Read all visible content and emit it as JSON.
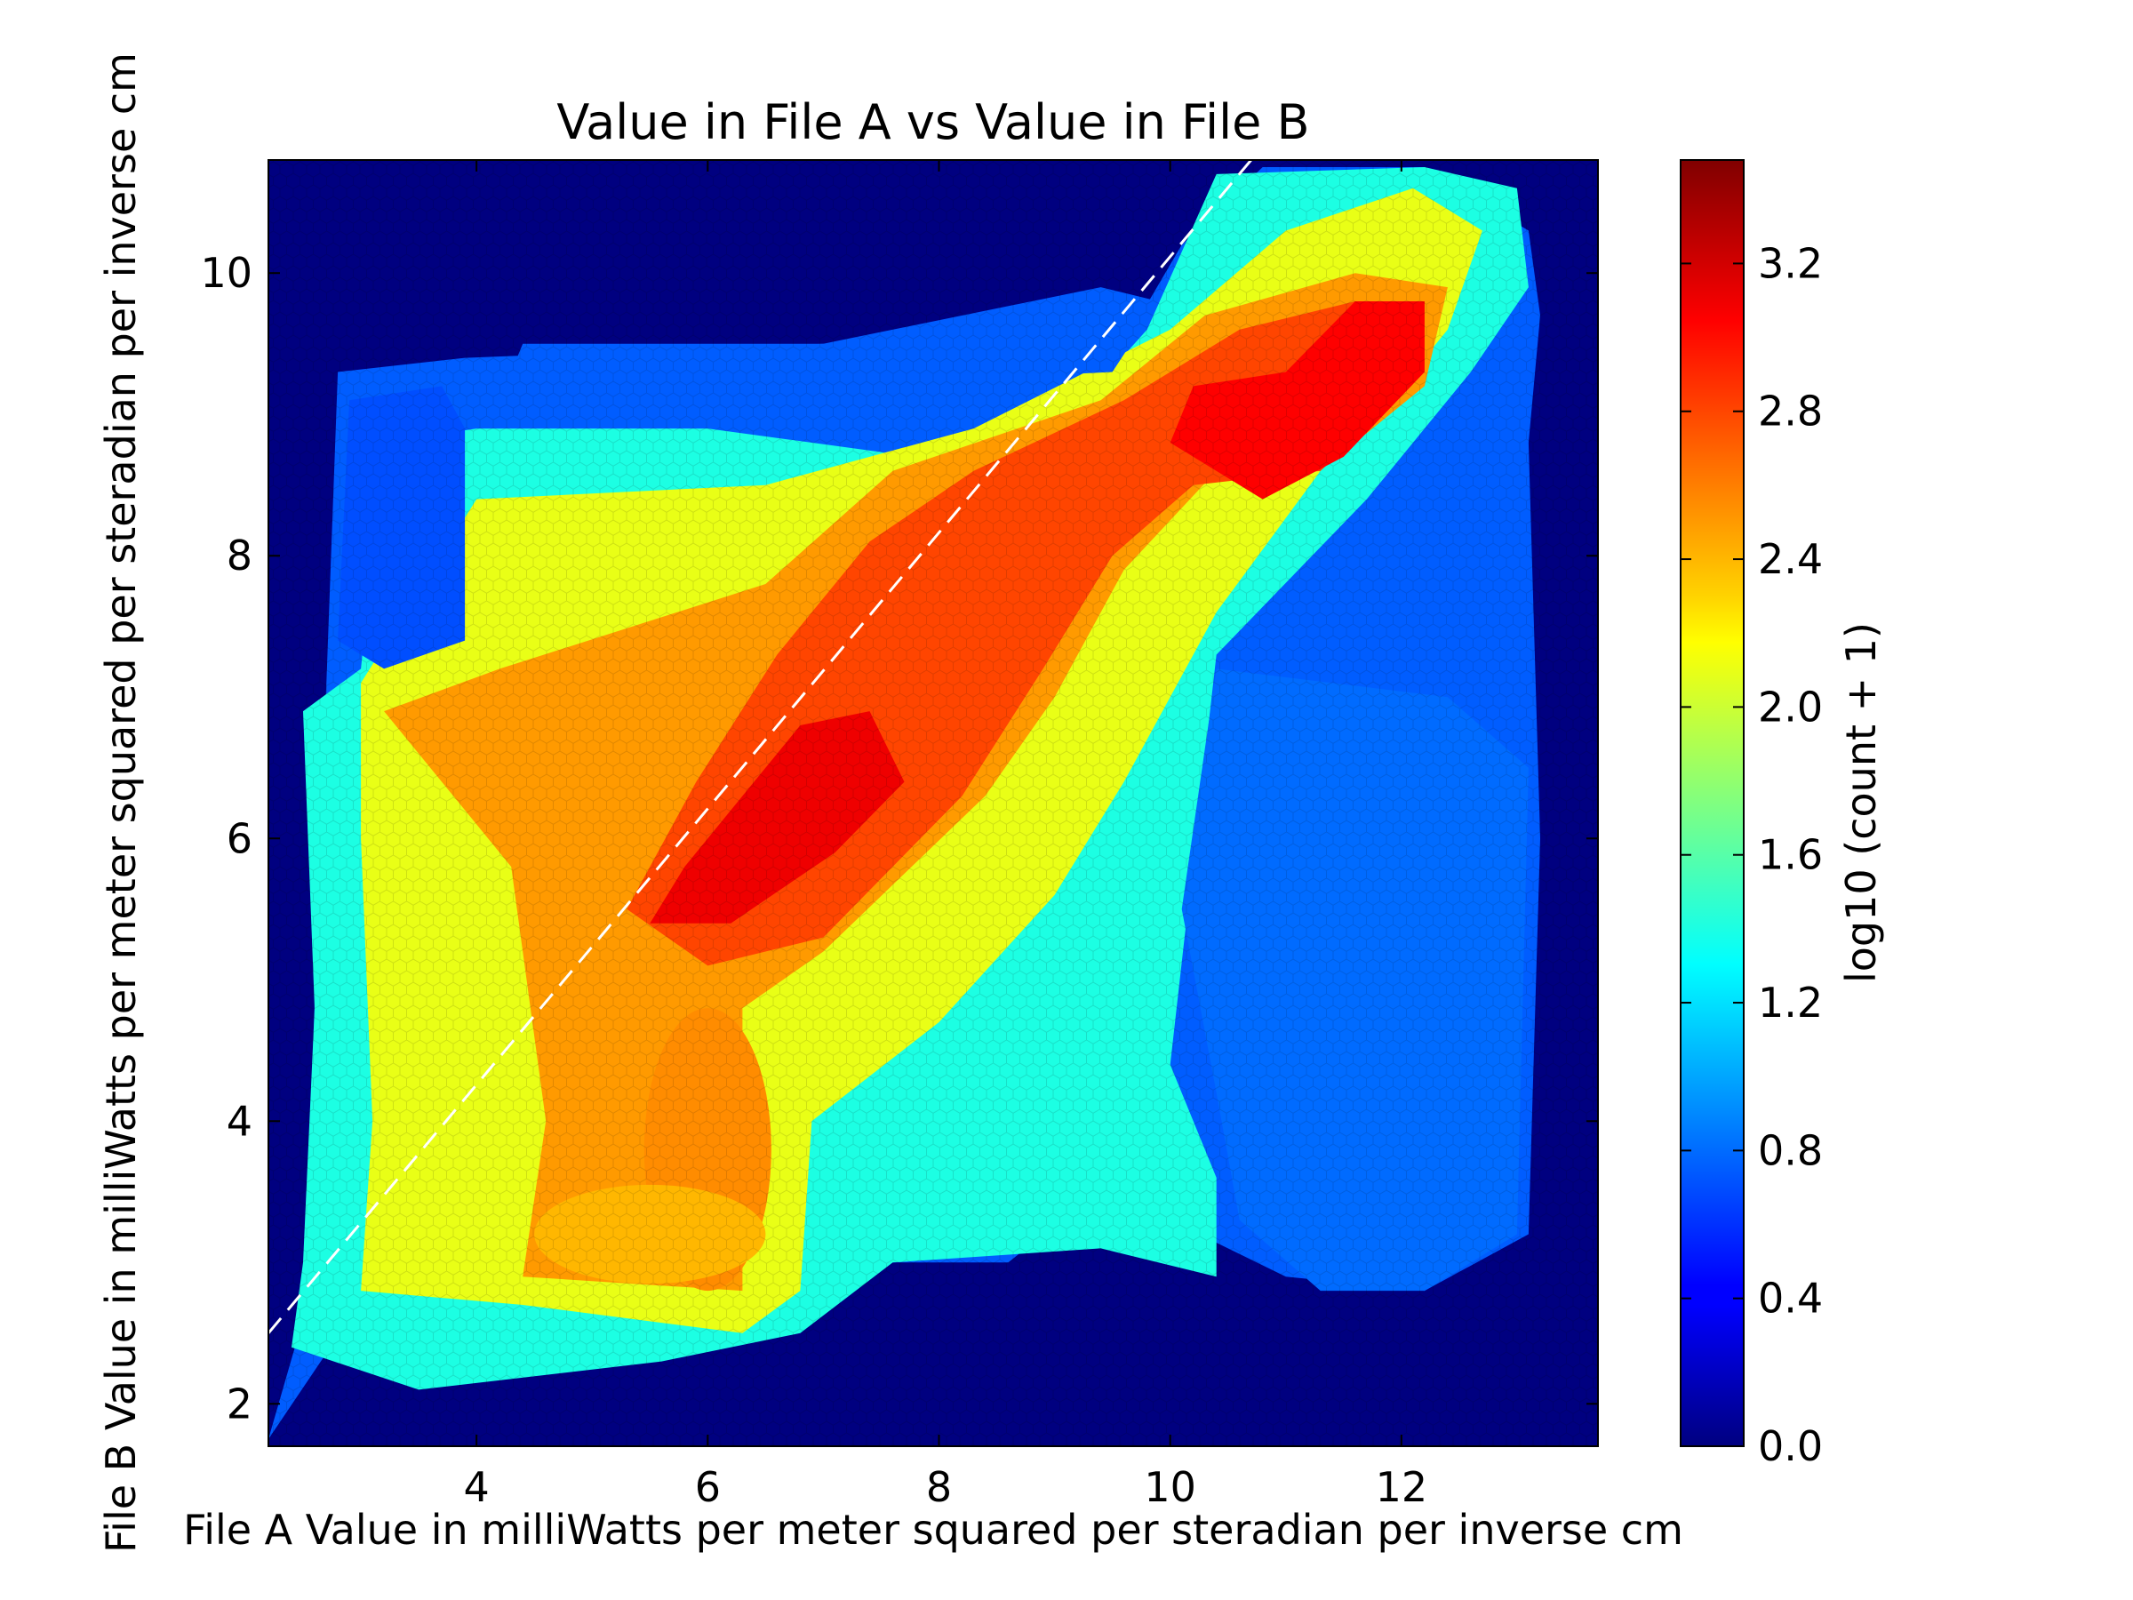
{
  "chart_data": {
    "type": "heatmap",
    "subtype": "hexbin",
    "title": "Value in File A vs Value in File B",
    "xlabel": "File A Value in milliWatts per meter squared per steradian per inverse cm",
    "ylabel": "File B Value in milliWatts per meter squared per steradian per inverse cm",
    "xlim": [
      2.2,
      13.7
    ],
    "ylim": [
      1.7,
      10.8
    ],
    "xticks": [
      4,
      6,
      8,
      10,
      12
    ],
    "yticks": [
      2,
      4,
      6,
      8,
      10
    ],
    "grid": false,
    "colormap": "jet",
    "background_color": "#000080",
    "reference_line": {
      "style": "dashed",
      "color": "#ffffff",
      "points": [
        [
          2.2,
          2.5
        ],
        [
          10.7,
          10.8
        ]
      ]
    },
    "colorbar": {
      "label": "log10 (count + 1)",
      "range": [
        0.0,
        3.48
      ],
      "ticks": [
        "0.0",
        "0.4",
        "0.8",
        "1.2",
        "1.6",
        "2.0",
        "2.4",
        "2.8",
        "3.2"
      ],
      "tick_values": [
        0.0,
        0.4,
        0.8,
        1.2,
        1.6,
        2.0,
        2.4,
        2.8,
        3.2
      ]
    },
    "density_regions": [
      {
        "type": "polygon",
        "level": 0.75,
        "points": [
          [
            2.2,
            1.75
          ],
          [
            2.9,
            2.6
          ],
          [
            6.5,
            2.6
          ],
          [
            7.5,
            3.0
          ],
          [
            8.6,
            3.0
          ],
          [
            9.5,
            3.6
          ],
          [
            10.0,
            3.3
          ],
          [
            11.0,
            2.9
          ],
          [
            12.2,
            2.8
          ],
          [
            13.1,
            3.2
          ],
          [
            13.2,
            6.0
          ],
          [
            13.1,
            8.8
          ],
          [
            13.2,
            9.7
          ],
          [
            13.1,
            10.3
          ],
          [
            12.2,
            10.75
          ],
          [
            10.8,
            10.75
          ],
          [
            10.1,
            10.2
          ],
          [
            9.6,
            9.5
          ],
          [
            7.0,
            9.5
          ],
          [
            3.9,
            9.4
          ],
          [
            2.8,
            9.3
          ],
          [
            2.5,
            2.6
          ]
        ]
      },
      {
        "type": "polygon",
        "level": 1.4,
        "points": [
          [
            2.4,
            2.4
          ],
          [
            3.5,
            2.1
          ],
          [
            5.6,
            2.3
          ],
          [
            6.8,
            2.5
          ],
          [
            7.6,
            3.0
          ],
          [
            9.4,
            3.1
          ],
          [
            10.4,
            2.9
          ],
          [
            10.4,
            3.6
          ],
          [
            10.0,
            4.4
          ],
          [
            10.4,
            7.3
          ],
          [
            11.7,
            8.4
          ],
          [
            12.6,
            9.3
          ],
          [
            13.1,
            9.9
          ],
          [
            13.0,
            10.6
          ],
          [
            12.2,
            10.75
          ],
          [
            10.4,
            10.7
          ],
          [
            9.8,
            9.6
          ],
          [
            8.7,
            8.6
          ],
          [
            6.0,
            8.9
          ],
          [
            4.0,
            8.9
          ],
          [
            3.2,
            8.8
          ],
          [
            3.0,
            7.2
          ],
          [
            2.5,
            6.9
          ],
          [
            2.6,
            4.8
          ],
          [
            2.5,
            3.0
          ]
        ]
      },
      {
        "type": "polygon",
        "level": 2.1,
        "points": [
          [
            3.0,
            2.8
          ],
          [
            4.4,
            2.7
          ],
          [
            6.3,
            2.5
          ],
          [
            6.8,
            2.8
          ],
          [
            6.9,
            4.0
          ],
          [
            8.0,
            4.7
          ],
          [
            9.0,
            5.6
          ],
          [
            9.6,
            6.4
          ],
          [
            10.4,
            7.6
          ],
          [
            11.3,
            8.6
          ],
          [
            11.9,
            9.1
          ],
          [
            12.4,
            9.6
          ],
          [
            12.7,
            10.3
          ],
          [
            12.1,
            10.6
          ],
          [
            11.0,
            10.3
          ],
          [
            10.0,
            9.6
          ],
          [
            8.3,
            8.9
          ],
          [
            6.5,
            8.5
          ],
          [
            4.0,
            8.4
          ],
          [
            3.0,
            7.1
          ],
          [
            3.0,
            6.0
          ],
          [
            3.1,
            4.0
          ]
        ]
      },
      {
        "type": "polygon",
        "level": 2.5,
        "points": [
          [
            4.4,
            2.9
          ],
          [
            6.3,
            2.8
          ],
          [
            6.3,
            4.8
          ],
          [
            7.0,
            5.2
          ],
          [
            8.4,
            6.3
          ],
          [
            9.0,
            7.0
          ],
          [
            9.6,
            7.9
          ],
          [
            10.4,
            8.6
          ],
          [
            11.6,
            8.8
          ],
          [
            12.2,
            9.2
          ],
          [
            12.4,
            9.9
          ],
          [
            11.6,
            10.0
          ],
          [
            10.3,
            9.7
          ],
          [
            9.4,
            9.1
          ],
          [
            7.6,
            8.6
          ],
          [
            6.5,
            7.8
          ],
          [
            4.2,
            7.2
          ],
          [
            3.2,
            6.9
          ],
          [
            4.3,
            5.8
          ],
          [
            4.6,
            4.0
          ]
        ]
      },
      {
        "type": "polygon",
        "level": 2.8,
        "points": [
          [
            5.3,
            5.5
          ],
          [
            6.0,
            5.1
          ],
          [
            7.0,
            5.3
          ],
          [
            8.2,
            6.3
          ],
          [
            8.9,
            7.2
          ],
          [
            9.5,
            8.0
          ],
          [
            10.2,
            8.5
          ],
          [
            11.3,
            8.6
          ],
          [
            11.7,
            8.9
          ],
          [
            11.9,
            9.4
          ],
          [
            11.6,
            9.8
          ],
          [
            10.6,
            9.6
          ],
          [
            9.6,
            9.1
          ],
          [
            8.3,
            8.6
          ],
          [
            7.4,
            8.1
          ],
          [
            6.6,
            7.3
          ],
          [
            5.9,
            6.4
          ]
        ]
      },
      {
        "type": "polygon",
        "level": 3.1,
        "points": [
          [
            5.5,
            5.4
          ],
          [
            6.2,
            5.4
          ],
          [
            7.1,
            5.9
          ],
          [
            7.7,
            6.4
          ],
          [
            7.4,
            6.9
          ],
          [
            6.8,
            6.8
          ],
          [
            6.2,
            6.2
          ],
          [
            5.8,
            5.8
          ]
        ]
      },
      {
        "type": "polygon",
        "level": 3.05,
        "points": [
          [
            10.0,
            8.8
          ],
          [
            10.8,
            8.4
          ],
          [
            11.5,
            8.7
          ],
          [
            12.2,
            9.3
          ],
          [
            12.2,
            9.8
          ],
          [
            11.6,
            9.8
          ],
          [
            11.0,
            9.3
          ],
          [
            10.2,
            9.2
          ]
        ]
      },
      {
        "type": "ellipse",
        "level": 2.55,
        "cx": 6.0,
        "cy": 3.8,
        "rx": 0.55,
        "ry": 1.0
      },
      {
        "type": "ellipse",
        "level": 2.4,
        "cx": 5.5,
        "cy": 3.2,
        "rx": 1.0,
        "ry": 0.35
      }
    ],
    "sparse_regions": [
      {
        "type": "polygon",
        "level": 0.8,
        "points": [
          [
            10.4,
            7.2
          ],
          [
            12.4,
            7.0
          ],
          [
            13.1,
            6.5
          ],
          [
            13.0,
            3.2
          ],
          [
            12.2,
            2.8
          ],
          [
            11.3,
            2.8
          ],
          [
            10.6,
            3.3
          ],
          [
            10.4,
            4.2
          ],
          [
            10.1,
            5.5
          ]
        ]
      },
      {
        "type": "polygon",
        "level": 0.7,
        "points": [
          [
            2.9,
            9.1
          ],
          [
            3.7,
            9.2
          ],
          [
            3.9,
            8.9
          ],
          [
            3.9,
            7.4
          ],
          [
            3.2,
            7.2
          ],
          [
            2.8,
            7.4
          ]
        ]
      },
      {
        "type": "polygon",
        "level": 0.75,
        "points": [
          [
            4.2,
            9.1
          ],
          [
            7.0,
            9.2
          ],
          [
            9.5,
            9.3
          ],
          [
            9.9,
            9.8
          ],
          [
            9.4,
            9.9
          ],
          [
            7.0,
            9.5
          ],
          [
            4.4,
            9.5
          ]
        ]
      }
    ]
  }
}
